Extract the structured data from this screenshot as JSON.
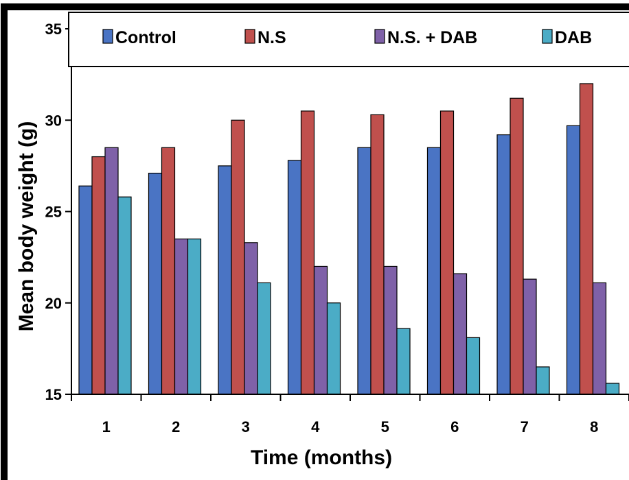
{
  "chart_data": {
    "type": "bar",
    "title": "",
    "xlabel": "Time (months)",
    "ylabel": "Mean body weight (g)",
    "ylim": [
      15,
      35
    ],
    "yticks": [
      15,
      20,
      25,
      30,
      35
    ],
    "categories": [
      "1",
      "2",
      "3",
      "4",
      "5",
      "6",
      "7",
      "8"
    ],
    "grid": false,
    "legend": "top",
    "series": [
      {
        "name": "Control",
        "color": "#4a74c4",
        "values": [
          26.4,
          27.1,
          27.5,
          27.8,
          28.5,
          28.5,
          29.2,
          29.7
        ]
      },
      {
        "name": "N.S",
        "color": "#c0504d",
        "values": [
          28.0,
          28.5,
          30.0,
          30.5,
          30.3,
          30.5,
          31.2,
          32.0
        ]
      },
      {
        "name": "N.S. + DAB",
        "color": "#7f61a8",
        "values": [
          28.5,
          23.5,
          23.3,
          22.0,
          22.0,
          21.6,
          21.3,
          21.1
        ]
      },
      {
        "name": "DAB",
        "color": "#4bacc6",
        "values": [
          25.8,
          23.5,
          21.1,
          20.0,
          18.6,
          18.1,
          16.5,
          15.6
        ]
      }
    ]
  }
}
